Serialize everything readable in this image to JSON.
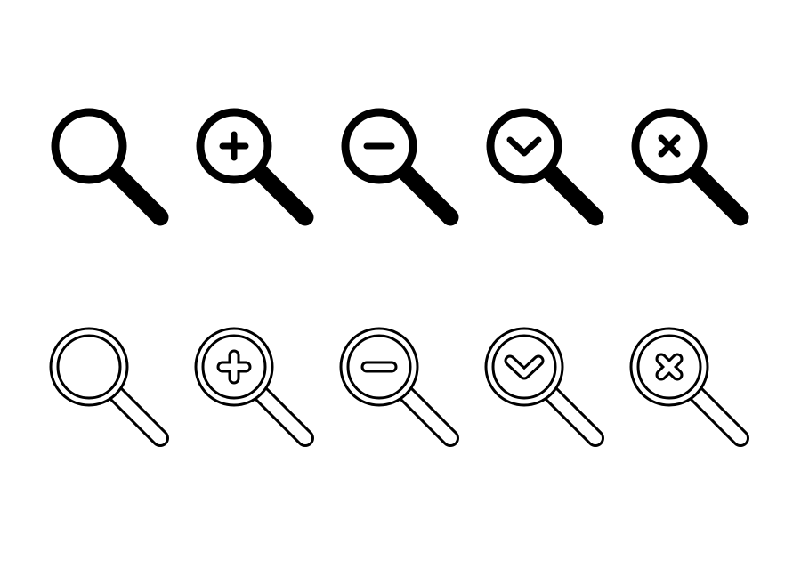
{
  "colors": {
    "background": "#ffffff",
    "ink": "#000000"
  },
  "icon_rows": [
    {
      "style": "solid",
      "icons": [
        {
          "name": "magnifier-icon",
          "mark": "none"
        },
        {
          "name": "zoom-in-icon",
          "mark": "plus"
        },
        {
          "name": "zoom-out-icon",
          "mark": "minus"
        },
        {
          "name": "search-check-icon",
          "mark": "check"
        },
        {
          "name": "search-close-icon",
          "mark": "cross"
        }
      ]
    },
    {
      "style": "outline",
      "icons": [
        {
          "name": "magnifier-outline-icon",
          "mark": "none"
        },
        {
          "name": "zoom-in-outline-icon",
          "mark": "plus"
        },
        {
          "name": "zoom-out-outline-icon",
          "mark": "minus"
        },
        {
          "name": "search-check-outline-icon",
          "mark": "check"
        },
        {
          "name": "search-close-outline-icon",
          "mark": "cross"
        }
      ]
    }
  ]
}
